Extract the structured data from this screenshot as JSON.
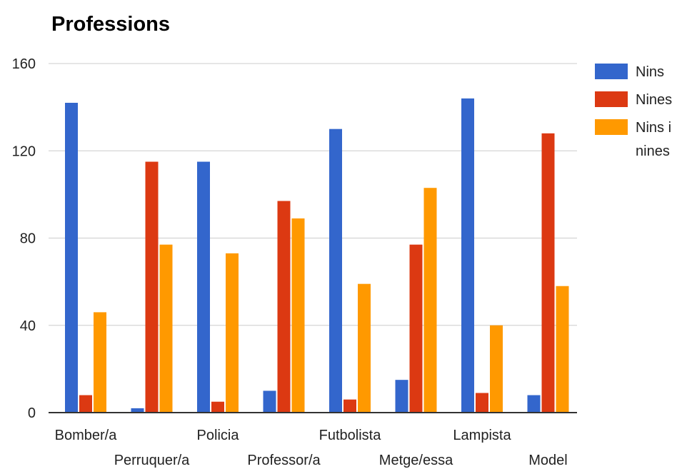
{
  "chart_data": {
    "type": "bar",
    "title": "Professions",
    "xlabel": "",
    "ylabel": "",
    "categories": [
      "Bomber/a",
      "Perruquer/a",
      "Policia",
      "Professor/a",
      "Futbolista",
      "Metge/essa",
      "Lampista",
      "Model"
    ],
    "series": [
      {
        "name": "Nins",
        "color": "#3366cc",
        "values": [
          142,
          2,
          115,
          10,
          130,
          15,
          144,
          8
        ]
      },
      {
        "name": "Nines",
        "color": "#dc3912",
        "values": [
          8,
          115,
          5,
          97,
          6,
          77,
          9,
          128
        ]
      },
      {
        "name": "Nins i nines",
        "color": "#ff9900",
        "values": [
          46,
          77,
          73,
          89,
          59,
          103,
          40,
          58
        ]
      }
    ],
    "ylim": [
      0,
      160
    ],
    "yticks": [
      "0",
      "40",
      "80",
      "120",
      "160"
    ],
    "grid": true,
    "legend_position": "right"
  }
}
